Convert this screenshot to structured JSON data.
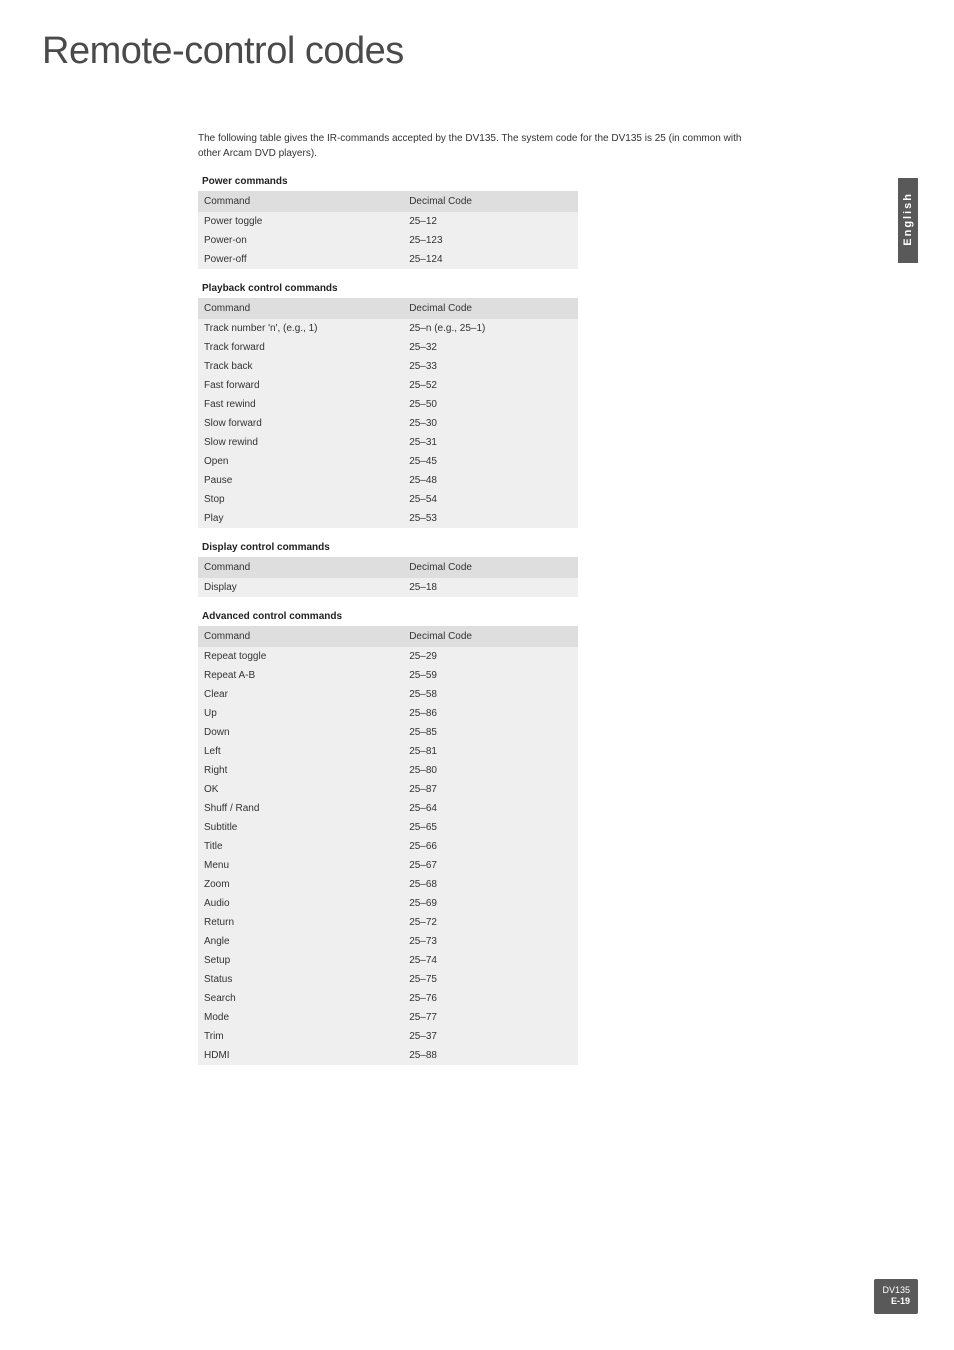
{
  "page": {
    "title": "Remote-control codes",
    "intro": "The following table gives the IR-commands accepted by the DV135. The system code for the DV135 is 25 (in common with other Arcam DVD players).",
    "side_tab": "English",
    "footer_model": "DV135",
    "footer_page": "E-19"
  },
  "table_header": {
    "command": "Command",
    "code": "Decimal Code"
  },
  "sections": [
    {
      "title": "Power commands",
      "rows": [
        {
          "c": "Power toggle",
          "v": "25–12"
        },
        {
          "c": "Power-on",
          "v": "25–123"
        },
        {
          "c": "Power-off",
          "v": "25–124"
        }
      ]
    },
    {
      "title": "Playback control commands",
      "rows": [
        {
          "c": "Track number 'n', (e.g., 1)",
          "v": "25–n (e.g., 25–1)"
        },
        {
          "c": "Track forward",
          "v": "25–32"
        },
        {
          "c": "Track back",
          "v": "25–33"
        },
        {
          "c": "Fast forward",
          "v": "25–52"
        },
        {
          "c": "Fast rewind",
          "v": "25–50"
        },
        {
          "c": "Slow forward",
          "v": "25–30"
        },
        {
          "c": "Slow rewind",
          "v": "25–31"
        },
        {
          "c": "Open",
          "v": "25–45"
        },
        {
          "c": "Pause",
          "v": "25–48"
        },
        {
          "c": "Stop",
          "v": "25–54"
        },
        {
          "c": "Play",
          "v": "25–53"
        }
      ]
    },
    {
      "title": "Display control commands",
      "rows": [
        {
          "c": "Display",
          "v": "25–18"
        }
      ]
    },
    {
      "title": "Advanced control commands",
      "rows": [
        {
          "c": "Repeat toggle",
          "v": "25–29"
        },
        {
          "c": "Repeat A-B",
          "v": "25–59"
        },
        {
          "c": "Clear",
          "v": "25–58"
        },
        {
          "c": "Up",
          "v": "25–86"
        },
        {
          "c": "Down",
          "v": "25–85"
        },
        {
          "c": "Left",
          "v": "25–81"
        },
        {
          "c": "Right",
          "v": "25–80"
        },
        {
          "c": "OK",
          "v": "25–87"
        },
        {
          "c": "Shuff / Rand",
          "v": "25–64"
        },
        {
          "c": "Subtitle",
          "v": "25–65"
        },
        {
          "c": "Title",
          "v": "25–66"
        },
        {
          "c": "Menu",
          "v": "25–67"
        },
        {
          "c": "Zoom",
          "v": "25–68"
        },
        {
          "c": "Audio",
          "v": "25–69"
        },
        {
          "c": "Return",
          "v": "25–72"
        },
        {
          "c": "Angle",
          "v": "25–73"
        },
        {
          "c": "Setup",
          "v": "25–74"
        },
        {
          "c": "Status",
          "v": "25–75"
        },
        {
          "c": "Search",
          "v": "25–76"
        },
        {
          "c": "Mode",
          "v": "25–77"
        },
        {
          "c": "Trim",
          "v": "25–37"
        },
        {
          "c": "HDMI",
          "v": "25–88"
        }
      ]
    }
  ],
  "style": {
    "title_fontsize": 38,
    "body_fontsize": 10,
    "header_bg": "#dedede",
    "row_bg": "#efefef",
    "page_bg": "#ffffff",
    "text_color": "#333333",
    "tab_bg": "#595959",
    "tab_text": "#ffffff"
  }
}
